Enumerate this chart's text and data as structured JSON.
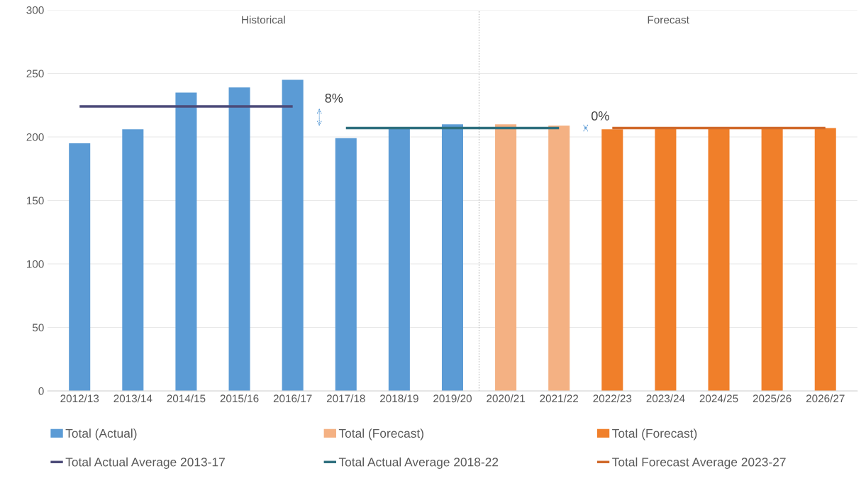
{
  "chart_data": {
    "type": "bar",
    "categories": [
      "2012/13",
      "2013/14",
      "2014/15",
      "2015/16",
      "2016/17",
      "2017/18",
      "2018/19",
      "2019/20",
      "2020/21",
      "2021/22",
      "2022/23",
      "2023/24",
      "2024/25",
      "2025/26",
      "2026/27"
    ],
    "series": [
      {
        "name": "Total (Actual)",
        "color": "#5b9bd5",
        "values": [
          195,
          206,
          235,
          239,
          245,
          199,
          207,
          210,
          null,
          null,
          null,
          null,
          null,
          null,
          null
        ]
      },
      {
        "name": "Total (Forecast)",
        "color": "#f4b183",
        "values": [
          null,
          null,
          null,
          null,
          null,
          null,
          null,
          null,
          210,
          209,
          null,
          null,
          null,
          null,
          null
        ]
      },
      {
        "name": "Total (Forecast)",
        "color": "#f07f2a",
        "values": [
          null,
          null,
          null,
          null,
          null,
          null,
          null,
          null,
          null,
          null,
          206,
          207,
          207,
          207,
          207
        ]
      },
      {
        "name": "Total Actual Average 2013-17",
        "type": "line",
        "color": "#4b4a78",
        "x": [
          "2012/13",
          "2016/17"
        ],
        "values": [
          224,
          224
        ]
      },
      {
        "name": "Total Actual Average 2018-22",
        "type": "line",
        "color": "#2e6f7e",
        "x": [
          "2017/18",
          "2021/22"
        ],
        "values": [
          207,
          207
        ]
      },
      {
        "name": "Total Forecast Average 2023-27",
        "type": "line",
        "color": "#d0692a",
        "x": [
          "2022/23",
          "2026/27"
        ],
        "values": [
          207,
          207
        ]
      }
    ],
    "annotations": [
      "8%",
      "0%",
      "Historical",
      "Forecast"
    ],
    "ref_lines": [
      {
        "axis": "x",
        "value": "2020/21",
        "color": "#bfbfbf",
        "line_style": "dotted"
      }
    ],
    "ylim": [
      0,
      300
    ],
    "yticks": [
      0,
      50,
      100,
      150,
      200,
      250,
      300
    ],
    "grid": "y",
    "legend": "bottom"
  }
}
